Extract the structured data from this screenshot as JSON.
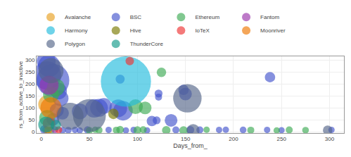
{
  "chart_data": {
    "type": "bubble",
    "xlabel": "Days_from_",
    "ylabel": "rs_from_active_to_inactive",
    "xlim": [
      -5,
      315
    ],
    "ylim": [
      -5,
      315
    ],
    "xticks": [
      0,
      50,
      100,
      150,
      200,
      250,
      300
    ],
    "yticks": [
      0,
      50,
      100,
      150,
      200,
      250,
      300
    ],
    "grid": true,
    "legend": "top",
    "series": [
      {
        "name": "Avalanche",
        "color": "#E8A020",
        "x": [
          6,
          5
        ],
        "y": [
          115,
          8
        ],
        "sizes": [
          350,
          70
        ]
      },
      {
        "name": "BSC",
        "color": "#4455CC",
        "x": [
          5,
          8,
          6,
          12,
          18,
          20,
          16,
          22,
          12,
          40,
          55,
          65,
          80,
          85,
          82,
          148,
          150,
          238,
          60,
          115,
          3,
          22,
          28,
          35,
          40,
          48,
          70,
          88,
          96,
          110,
          140,
          155,
          165,
          185,
          192,
          210,
          235,
          250,
          302,
          120,
          135,
          122,
          122
        ],
        "y": [
          295,
          275,
          235,
          215,
          170,
          140,
          90,
          78,
          52,
          85,
          98,
          108,
          98,
          88,
          220,
          175,
          158,
          228,
          100,
          45,
          10,
          6,
          7,
          8,
          6,
          8,
          8,
          6,
          8,
          6,
          8,
          8,
          8,
          8,
          9,
          8,
          8,
          7,
          8,
          48,
          48,
          160,
          145
        ],
        "sizes": [
          400,
          550,
          900,
          1200,
          300,
          280,
          220,
          180,
          180,
          280,
          380,
          280,
          350,
          420,
          90,
          120,
          180,
          120,
          350,
          120,
          80,
          50,
          50,
          45,
          45,
          60,
          45,
          45,
          45,
          45,
          55,
          70,
          55,
          45,
          45,
          50,
          45,
          45,
          45,
          70,
          180,
          70,
          55
        ]
      },
      {
        "name": "Ethereum",
        "color": "#3DAA55",
        "x": [
          15,
          10,
          6,
          125,
          108,
          98,
          10,
          50,
          56,
          60,
          78,
          82,
          100,
          106,
          130,
          148,
          172,
          218,
          258,
          275,
          245
        ],
        "y": [
          185,
          155,
          58,
          248,
          100,
          105,
          7,
          6,
          9,
          7,
          7,
          9,
          7,
          9,
          7,
          6,
          9,
          7,
          8,
          7,
          6
        ],
        "sizes": [
          350,
          280,
          280,
          100,
          180,
          240,
          60,
          55,
          45,
          55,
          55,
          65,
          70,
          55,
          80,
          80,
          45,
          55,
          55,
          50,
          45
        ]
      },
      {
        "name": "Fantom",
        "color": "#9933AA",
        "x": [
          8,
          14
        ],
        "y": [
          195,
          9
        ],
        "sizes": [
          400,
          55
        ]
      },
      {
        "name": "Harmony",
        "color": "#22BBDD",
        "x": [
          88
        ],
        "y": [
          210
        ],
        "sizes": [
          2800
        ]
      },
      {
        "name": "Hive",
        "color": "#7A7A00",
        "x": [
          75
        ],
        "y": [
          75
        ],
        "sizes": [
          120
        ]
      },
      {
        "name": "IoTeX",
        "color": "#EE3333",
        "x": [
          92,
          18,
          8
        ],
        "y": [
          295,
          8,
          35
        ],
        "sizes": [
          80,
          55,
          180
        ]
      },
      {
        "name": "Moonriver",
        "color": "#EE7700",
        "x": [
          10,
          7
        ],
        "y": [
          100,
          6
        ],
        "sizes": [
          500,
          70
        ]
      },
      {
        "name": "Polygon",
        "color": "#556688",
        "x": [
          10,
          30,
          50,
          152,
          158,
          298
        ],
        "y": [
          255,
          65,
          68,
          140,
          6,
          7
        ],
        "sizes": [
          700,
          800,
          1200,
          900,
          180,
          100
        ]
      },
      {
        "name": "ThunderCore",
        "color": "#119988",
        "x": [
          5,
          15
        ],
        "y": [
          30,
          28
        ],
        "sizes": [
          280,
          120
        ]
      }
    ]
  }
}
